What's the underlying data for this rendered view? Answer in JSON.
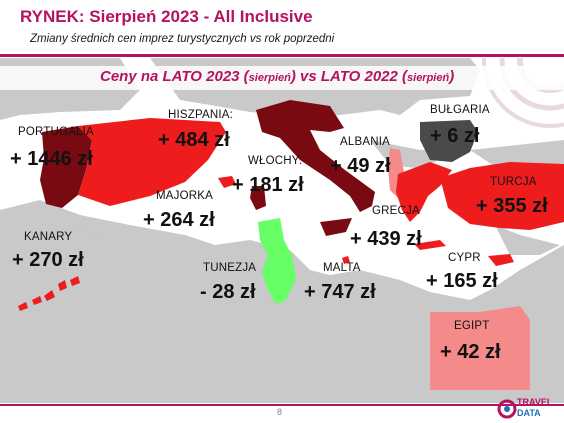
{
  "header": {
    "title": "RYNEK: Sierpień 2023 - All Inclusive",
    "subtitle": "Zmiany średnich cen imprez turystycznych vs rok poprzedni"
  },
  "banner": {
    "part1": "Ceny na LATO 2023 (",
    "part1_small": "sierpień",
    "part2": ") vs  LATO 2022 (",
    "part2_small": "sierpień",
    "part3": ")"
  },
  "countries": [
    {
      "name": "PORTUGALIA",
      "change": "+ 1446 zł",
      "color": "#7a0a12"
    },
    {
      "name": "HISZPANIA:",
      "change": "+ 484 zł",
      "color": "#ee1c1c"
    },
    {
      "name": "MAJORKA",
      "change": "+ 264 zł",
      "color": "#ee1c1c"
    },
    {
      "name": "KANARY",
      "change": "+ 270 zł",
      "color": "#ee1c1c"
    },
    {
      "name": "WŁOCHY:",
      "change": "+ 181 zł",
      "color": "#7a0a12"
    },
    {
      "name": "ALBANIA",
      "change": "+ 49 zł",
      "color": "#f48a8a"
    },
    {
      "name": "BUŁGARIA",
      "change": "+ 6 zł",
      "color": "#4a4a4a"
    },
    {
      "name": "TURCJA",
      "change": "+ 355 zł",
      "color": "#ee1c1c"
    },
    {
      "name": "GRECJA",
      "change": "+ 439 zł",
      "color": "#ee1c1c"
    },
    {
      "name": "TUNEZJA",
      "change": "- 28 zł",
      "color": "#66ff66"
    },
    {
      "name": "MALTA",
      "change": "+ 747 zł",
      "color": "#ee1c1c"
    },
    {
      "name": "CYPR",
      "change": "+ 165 zł",
      "color": "#ee1c1c"
    },
    {
      "name": "EGIPT",
      "change": "+ 42 zł",
      "color": "#f48a8a"
    }
  ],
  "footer": {
    "page": "8",
    "logo_top": "TRAVEL",
    "logo_bottom": "DATA"
  },
  "colors": {
    "accent": "#b5135f",
    "sea": "#ffffff",
    "land": "#c9c9c9"
  }
}
